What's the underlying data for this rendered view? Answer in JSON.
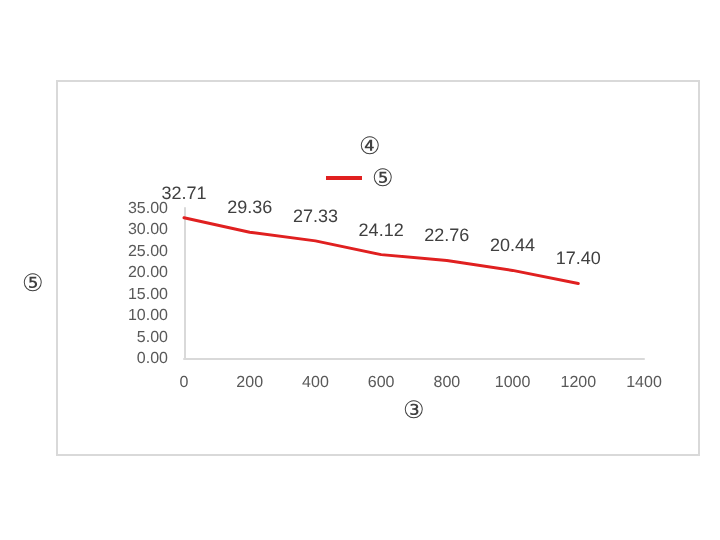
{
  "chart_data": {
    "type": "line",
    "title": "④",
    "xlabel": "③",
    "ylabel": "⑤",
    "x": [
      0,
      200,
      400,
      600,
      800,
      1000,
      1200
    ],
    "series": [
      {
        "name": "⑤",
        "color": "#e02020",
        "values": [
          32.71,
          29.36,
          27.33,
          24.12,
          22.76,
          20.44,
          17.4
        ],
        "value_labels": [
          "32.71",
          "29.36",
          "27.33",
          "24.12",
          "22.76",
          "20.44",
          "17.40"
        ]
      }
    ],
    "xlim": [
      0,
      1400
    ],
    "xticks": [
      0,
      200,
      400,
      600,
      800,
      1000,
      1200,
      1400
    ],
    "ylim": [
      0,
      35
    ],
    "yticks": [
      {
        "value": 0,
        "label": "0.00"
      },
      {
        "value": 5,
        "label": "5.00"
      },
      {
        "value": 10,
        "label": "10.00"
      },
      {
        "value": 15,
        "label": "15.00"
      },
      {
        "value": 20,
        "label": "20.00"
      },
      {
        "value": 25,
        "label": "25.00"
      },
      {
        "value": 30,
        "label": "30.00"
      },
      {
        "value": 35,
        "label": "35.00"
      }
    ],
    "grid": false,
    "legend": "top",
    "marker": "none",
    "line_style": "solid"
  }
}
